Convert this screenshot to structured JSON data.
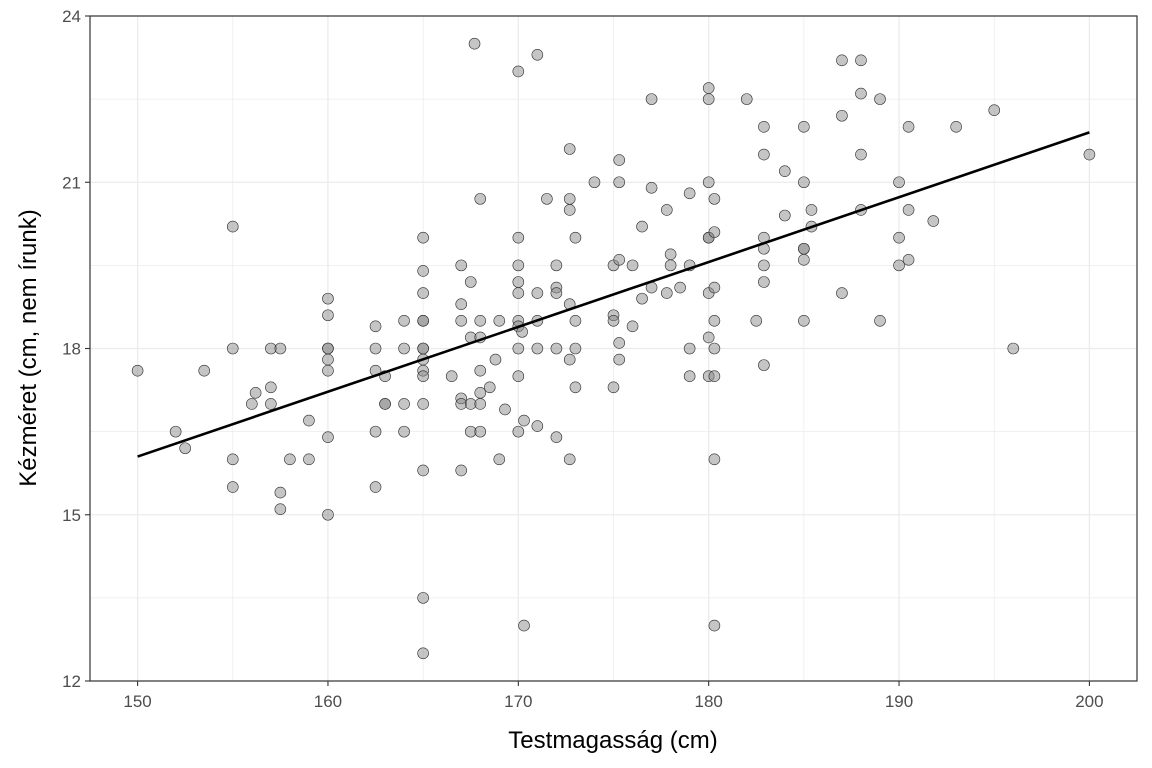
{
  "chart_data": {
    "type": "scatter",
    "title": "",
    "xlabel": "Testmagasság (cm)",
    "ylabel": "Kézméret (cm, nem írunk)",
    "xlim": [
      147.5,
      202.5
    ],
    "ylim": [
      12,
      24
    ],
    "x_ticks": [
      150,
      160,
      170,
      180,
      190,
      200
    ],
    "y_ticks": [
      12,
      15,
      18,
      21,
      24
    ],
    "x_tick_labels": [
      "150",
      "160",
      "170",
      "180",
      "190",
      "200"
    ],
    "y_tick_labels": [
      "12",
      "15",
      "18",
      "21",
      "24"
    ],
    "grid": true,
    "legend": "none",
    "colors": {
      "point_fill": "#8c8c8c",
      "point_stroke": "#333333",
      "line": "#000000",
      "grid": "#ebebeb",
      "panel_border": "#333333"
    },
    "regression_line": {
      "x": [
        150,
        200
      ],
      "y": [
        16.05,
        21.9
      ]
    },
    "points": [
      [
        150,
        17.6
      ],
      [
        152,
        16.5
      ],
      [
        152.5,
        16.2
      ],
      [
        153.5,
        17.6
      ],
      [
        155,
        18
      ],
      [
        155,
        20.2
      ],
      [
        155,
        16
      ],
      [
        155,
        15.5
      ],
      [
        156,
        17
      ],
      [
        156.2,
        17.2
      ],
      [
        157,
        18
      ],
      [
        157,
        17.3
      ],
      [
        157,
        17
      ],
      [
        157.5,
        18
      ],
      [
        157.5,
        15.4
      ],
      [
        157.5,
        15.1
      ],
      [
        158,
        16
      ],
      [
        159,
        16.7
      ],
      [
        159,
        16
      ],
      [
        160,
        18.9
      ],
      [
        160,
        18.6
      ],
      [
        160,
        18
      ],
      [
        160,
        18
      ],
      [
        160,
        17.8
      ],
      [
        160,
        17.6
      ],
      [
        160,
        16.4
      ],
      [
        160,
        15
      ],
      [
        162.5,
        18.4
      ],
      [
        162.5,
        18
      ],
      [
        162.5,
        17.6
      ],
      [
        162.5,
        16.5
      ],
      [
        162.5,
        15.5
      ],
      [
        163,
        17.5
      ],
      [
        163,
        17
      ],
      [
        163,
        17
      ],
      [
        164,
        18.5
      ],
      [
        164,
        18
      ],
      [
        164,
        17
      ],
      [
        164,
        16.5
      ],
      [
        165,
        20
      ],
      [
        165,
        19.4
      ],
      [
        165,
        19
      ],
      [
        165,
        18.5
      ],
      [
        165,
        18.5
      ],
      [
        165,
        18
      ],
      [
        165,
        18
      ],
      [
        165,
        17.8
      ],
      [
        165,
        17.6
      ],
      [
        165,
        17.5
      ],
      [
        165,
        17
      ],
      [
        165,
        15.8
      ],
      [
        165,
        13.5
      ],
      [
        165,
        12.5
      ],
      [
        166.5,
        17.5
      ],
      [
        167,
        19.5
      ],
      [
        167,
        18.8
      ],
      [
        167,
        18.5
      ],
      [
        167,
        17.1
      ],
      [
        167,
        17
      ],
      [
        167,
        15.8
      ],
      [
        167.5,
        19.2
      ],
      [
        167.5,
        18.2
      ],
      [
        167.5,
        17
      ],
      [
        167.5,
        16.5
      ],
      [
        167.7,
        23.5
      ],
      [
        168,
        20.7
      ],
      [
        168,
        18.5
      ],
      [
        168,
        18.2
      ],
      [
        168,
        17.6
      ],
      [
        168,
        17.2
      ],
      [
        168,
        17
      ],
      [
        168,
        16.5
      ],
      [
        168.5,
        17.3
      ],
      [
        168.8,
        17.8
      ],
      [
        169,
        18.5
      ],
      [
        169,
        16
      ],
      [
        169.3,
        16.9
      ],
      [
        170,
        23
      ],
      [
        170,
        20
      ],
      [
        170,
        19.5
      ],
      [
        170,
        19.2
      ],
      [
        170,
        19
      ],
      [
        170,
        18.5
      ],
      [
        170,
        18.4
      ],
      [
        170,
        18
      ],
      [
        170,
        17.5
      ],
      [
        170,
        16.5
      ],
      [
        170.2,
        18.3
      ],
      [
        170.3,
        16.7
      ],
      [
        170.3,
        13
      ],
      [
        171,
        23.3
      ],
      [
        171,
        19
      ],
      [
        171,
        18.5
      ],
      [
        171,
        18
      ],
      [
        171,
        16.6
      ],
      [
        171.5,
        20.7
      ],
      [
        172,
        19.5
      ],
      [
        172,
        19.1
      ],
      [
        172,
        19
      ],
      [
        172,
        18
      ],
      [
        172,
        16.4
      ],
      [
        172.7,
        21.6
      ],
      [
        172.7,
        20.7
      ],
      [
        172.7,
        20.5
      ],
      [
        172.7,
        18.8
      ],
      [
        172.7,
        17.8
      ],
      [
        172.7,
        16
      ],
      [
        173,
        20
      ],
      [
        173,
        18.5
      ],
      [
        173,
        18
      ],
      [
        173,
        17.3
      ],
      [
        174,
        21
      ],
      [
        175,
        19.5
      ],
      [
        175,
        18.6
      ],
      [
        175,
        18.5
      ],
      [
        175,
        17.3
      ],
      [
        175.3,
        21.4
      ],
      [
        175.3,
        21
      ],
      [
        175.3,
        19.6
      ],
      [
        175.3,
        18.1
      ],
      [
        175.3,
        17.8
      ],
      [
        176,
        19.5
      ],
      [
        176,
        18.4
      ],
      [
        176.5,
        20.2
      ],
      [
        176.5,
        18.9
      ],
      [
        177,
        22.5
      ],
      [
        177,
        20.9
      ],
      [
        177,
        19.1
      ],
      [
        177.8,
        20.5
      ],
      [
        177.8,
        19
      ],
      [
        178,
        19.7
      ],
      [
        178,
        19.5
      ],
      [
        178.5,
        19.1
      ],
      [
        179,
        20.8
      ],
      [
        179,
        19.5
      ],
      [
        179,
        18
      ],
      [
        179,
        17.5
      ],
      [
        180,
        22.7
      ],
      [
        180,
        22.5
      ],
      [
        180,
        21
      ],
      [
        180,
        20
      ],
      [
        180,
        20
      ],
      [
        180,
        19
      ],
      [
        180,
        18.2
      ],
      [
        180,
        17.5
      ],
      [
        180.3,
        20.7
      ],
      [
        180.3,
        20.1
      ],
      [
        180.3,
        19.1
      ],
      [
        180.3,
        18.5
      ],
      [
        180.3,
        18
      ],
      [
        180.3,
        17.5
      ],
      [
        180.3,
        16
      ],
      [
        180.3,
        13
      ],
      [
        182,
        22.5
      ],
      [
        182.5,
        18.5
      ],
      [
        182.9,
        22
      ],
      [
        182.9,
        21.5
      ],
      [
        182.9,
        20
      ],
      [
        182.9,
        19.8
      ],
      [
        182.9,
        19.5
      ],
      [
        182.9,
        19.2
      ],
      [
        182.9,
        17.7
      ],
      [
        184,
        21.2
      ],
      [
        184,
        20.4
      ],
      [
        185,
        22
      ],
      [
        185,
        21
      ],
      [
        185,
        19.8
      ],
      [
        185,
        19.8
      ],
      [
        185,
        19.6
      ],
      [
        185,
        18.5
      ],
      [
        185.4,
        20.5
      ],
      [
        185.4,
        20.2
      ],
      [
        187,
        23.2
      ],
      [
        187,
        22.2
      ],
      [
        187,
        19
      ],
      [
        188,
        23.2
      ],
      [
        188,
        22.6
      ],
      [
        188,
        21.5
      ],
      [
        188,
        20.5
      ],
      [
        189,
        22.5
      ],
      [
        189,
        18.5
      ],
      [
        190,
        21
      ],
      [
        190,
        20
      ],
      [
        190,
        19.5
      ],
      [
        190.5,
        22
      ],
      [
        190.5,
        20.5
      ],
      [
        190.5,
        19.6
      ],
      [
        191.8,
        20.3
      ],
      [
        193,
        22
      ],
      [
        195,
        22.3
      ],
      [
        196,
        18
      ],
      [
        200,
        21.5
      ]
    ]
  }
}
